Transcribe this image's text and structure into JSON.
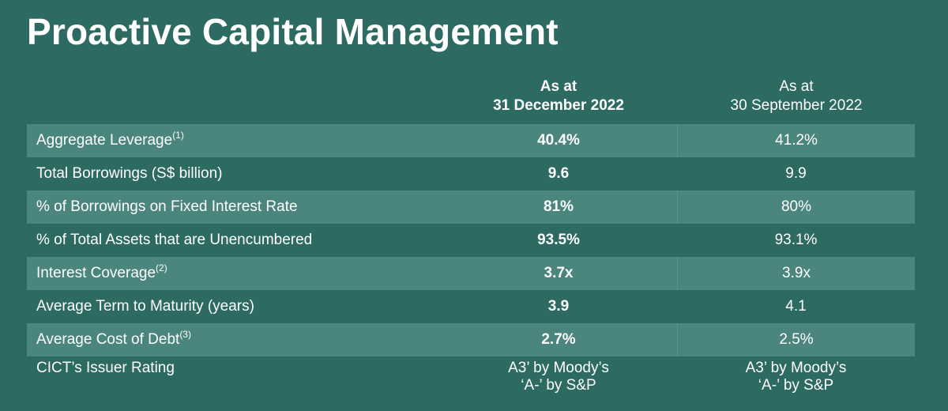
{
  "title": "Proactive Capital Management",
  "columns": {
    "current": {
      "line1": "As at",
      "line2": "31 December 2022"
    },
    "previous": {
      "line1": "As at",
      "line2": "30 September 2022"
    }
  },
  "rows": [
    {
      "label": "Aggregate Leverage",
      "note": "(1)",
      "current": "40.4%",
      "previous": "41.2%"
    },
    {
      "label": "Total Borrowings (S$ billion)",
      "note": "",
      "current": "9.6",
      "previous": "9.9"
    },
    {
      "label": "% of Borrowings on Fixed Interest Rate",
      "note": "",
      "current": "81%",
      "previous": "80%"
    },
    {
      "label": "% of Total Assets that are Unencumbered",
      "note": "",
      "current": "93.5%",
      "previous": "93.1%"
    },
    {
      "label": "Interest Coverage",
      "note": "(2)",
      "current": "3.7x",
      "previous": "3.9x"
    },
    {
      "label": "Average Term to Maturity (years)",
      "note": "",
      "current": "3.9",
      "previous": "4.1"
    },
    {
      "label": "Average Cost of Debt",
      "note": "(3)",
      "current": "2.7%",
      "previous": "2.5%"
    }
  ],
  "rating": {
    "label": "CICT’s Issuer Rating",
    "current": {
      "line1": "A3’ by Moody’s",
      "line2": "‘A-’ by S&P"
    },
    "previous": {
      "line1": "A3’ by Moody’s",
      "line2": "‘A-’ by S&P"
    }
  },
  "colors": {
    "background": "#2d6a61",
    "row_shade": "#4a867d",
    "text": "#ffffff"
  }
}
